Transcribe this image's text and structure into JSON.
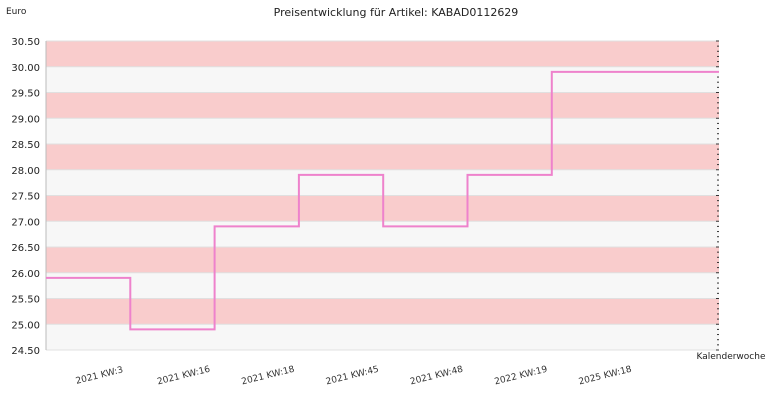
{
  "chart_data": {
    "type": "line",
    "step": true,
    "title": "Preisentwicklung für Artikel: KABAD0112629",
    "ylabel": "Euro",
    "xlabel": "Kalenderwoche",
    "categories": [
      "2021 KW:3",
      "2021 KW:16",
      "2021 KW:18",
      "2021 KW:45",
      "2021 KW:48",
      "2022 KW:19",
      "2025 KW:18"
    ],
    "series": [
      {
        "values": [
          25.9,
          24.9,
          26.9,
          27.9,
          26.9,
          27.9,
          29.9
        ]
      }
    ],
    "ylim": [
      24.5,
      30.5
    ],
    "yticks": [
      "24.50",
      "25.00",
      "25.50",
      "26.00",
      "26.50",
      "27.00",
      "27.50",
      "28.00",
      "28.50",
      "29.00",
      "29.50",
      "30.00",
      "30.50"
    ],
    "grid": true,
    "colors": {
      "line": "#ee82cc",
      "band_a": "#f9cccc",
      "band_b": "#f7f7f7",
      "gridline": "#e0e0e0"
    }
  }
}
